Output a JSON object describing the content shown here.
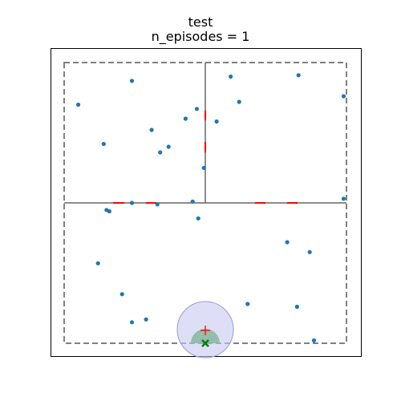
{
  "title": {
    "line1": "test",
    "line2": "n_episodes = 1"
  },
  "colors": {
    "frame": "#000000",
    "boundary": "#808080",
    "wall": "#666666",
    "door": "#ff0000",
    "point": "#1f77b4",
    "agent_region": "#c8c8f0",
    "goal_sector": "#7fb59a",
    "agent_marker": "#008000",
    "goal_marker": "#ff0000"
  },
  "icons": {
    "agent": "x-marker",
    "goal": "plus-marker"
  },
  "chart_data": {
    "type": "scatter",
    "title": "test\nn_episodes = 1",
    "xlim": [
      0,
      10
    ],
    "ylim": [
      0,
      10
    ],
    "grid": false,
    "points": [
      [
        2.4,
        9.35
      ],
      [
        5.9,
        9.5
      ],
      [
        8.3,
        9.55
      ],
      [
        9.9,
        8.8
      ],
      [
        0.5,
        8.5
      ],
      [
        6.2,
        8.6
      ],
      [
        4.7,
        8.35
      ],
      [
        4.3,
        8.0
      ],
      [
        5.4,
        7.9
      ],
      [
        3.1,
        7.6
      ],
      [
        1.4,
        7.1
      ],
      [
        3.7,
        7.0
      ],
      [
        3.4,
        6.8
      ],
      [
        4.95,
        6.25
      ],
      [
        9.9,
        5.15
      ],
      [
        1.5,
        4.75
      ],
      [
        1.6,
        4.7
      ],
      [
        2.4,
        5.0
      ],
      [
        3.3,
        4.95
      ],
      [
        4.55,
        5.05
      ],
      [
        4.75,
        4.45
      ],
      [
        7.9,
        3.6
      ],
      [
        8.7,
        3.25
      ],
      [
        1.2,
        2.85
      ],
      [
        2.05,
        1.75
      ],
      [
        6.5,
        1.4
      ],
      [
        8.25,
        1.3
      ],
      [
        2.4,
        0.75
      ],
      [
        2.9,
        0.85
      ],
      [
        8.85,
        0.1
      ]
    ],
    "agent": [
      5.0,
      0.0
    ],
    "goal": [
      5.0,
      0.45
    ],
    "sensing_radius": 1.0
  }
}
